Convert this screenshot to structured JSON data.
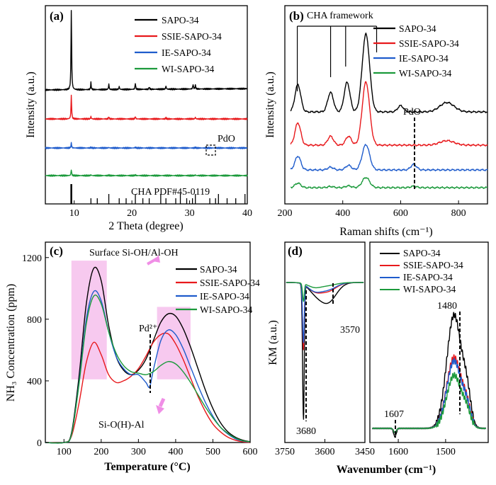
{
  "colors": {
    "SAPO-34": "#000000",
    "SSIE-SAPO-34": "#e8191c",
    "IE-SAPO-34": "#1f5ccc",
    "WI-SAPO-34": "#1c9a3c",
    "highlight": "#f7c9ef",
    "arrow": "#f08ee6"
  },
  "legend": [
    "SAPO-34",
    "SSIE-SAPO-34",
    "IE-SAPO-34",
    "WI-SAPO-34"
  ],
  "chart_data": [
    {
      "panel": "(a)",
      "type": "line",
      "xlabel": "2 Theta (degree)",
      "ylabel": "Intensity (a.u.)",
      "xlim": [
        5,
        40
      ],
      "xticks": [
        10,
        20,
        30,
        40
      ],
      "annotations": [
        "PdO",
        "CHA PDF#45-0119"
      ],
      "reference_peaks": [
        9.5,
        12.9,
        14.0,
        16.0,
        17.8,
        19.0,
        20.6,
        21.9,
        23.0,
        25.0,
        25.9,
        27.6,
        28.4,
        29.5,
        30.5,
        31.0,
        33.5,
        34.5,
        35.0,
        36.5,
        38.0,
        39.6
      ],
      "series": [
        {
          "name": "SAPO-34",
          "peaks": [
            [
              9.5,
              1.0
            ],
            [
              12.9,
              0.09
            ],
            [
              16.0,
              0.07
            ],
            [
              17.8,
              0.04
            ],
            [
              20.6,
              0.08
            ],
            [
              23.0,
              0.03
            ],
            [
              25.9,
              0.04
            ],
            [
              30.6,
              0.06
            ],
            [
              31.0,
              0.05
            ]
          ]
        },
        {
          "name": "SSIE-SAPO-34",
          "peaks": [
            [
              9.5,
              0.55
            ],
            [
              12.9,
              0.06
            ],
            [
              16.0,
              0.05
            ],
            [
              20.6,
              0.06
            ],
            [
              25.9,
              0.03
            ],
            [
              31.0,
              0.04
            ]
          ]
        },
        {
          "name": "IE-SAPO-34",
          "peaks": [
            [
              9.5,
              0.25
            ],
            [
              12.9,
              0.04
            ],
            [
              16.0,
              0.03
            ],
            [
              20.6,
              0.04
            ],
            [
              31.0,
              0.03
            ]
          ]
        },
        {
          "name": "WI-SAPO-34",
          "peaks": [
            [
              9.5,
              0.28
            ],
            [
              12.9,
              0.04
            ],
            [
              16.0,
              0.03
            ],
            [
              20.6,
              0.04
            ],
            [
              31.0,
              0.03
            ]
          ]
        }
      ]
    },
    {
      "panel": "(b)",
      "type": "line",
      "xlabel": "Raman shifts (cm⁻¹)",
      "ylabel": "Intensity (a.u.)",
      "xlim": [
        200,
        900
      ],
      "xticks": [
        200,
        400,
        600,
        800
      ],
      "annotations": [
        "CHA framework",
        "PdO"
      ],
      "framework_bands": [
        243,
        358,
        410,
        480
      ],
      "pdo_band": 645,
      "series": [
        {
          "name": "SAPO-34",
          "peaks": [
            [
              245,
              0.35
            ],
            [
              358,
              0.25
            ],
            [
              415,
              0.38
            ],
            [
              480,
              1.0
            ],
            [
              600,
              0.08
            ],
            [
              760,
              0.12
            ]
          ]
        },
        {
          "name": "SSIE-SAPO-34",
          "peaks": [
            [
              245,
              0.3
            ],
            [
              358,
              0.12
            ],
            [
              420,
              0.12
            ],
            [
              480,
              0.85
            ],
            [
              760,
              0.06
            ]
          ]
        },
        {
          "name": "IE-SAPO-34",
          "peaks": [
            [
              245,
              0.3
            ],
            [
              358,
              0.06
            ],
            [
              420,
              0.1
            ],
            [
              480,
              0.55
            ],
            [
              645,
              0.12
            ]
          ]
        },
        {
          "name": "WI-SAPO-34",
          "peaks": [
            [
              245,
              0.2
            ],
            [
              358,
              0.05
            ],
            [
              420,
              0.08
            ],
            [
              480,
              0.45
            ],
            [
              645,
              0.06
            ]
          ]
        }
      ]
    },
    {
      "panel": "(c)",
      "type": "line",
      "xlabel": "Temperature (°C)",
      "ylabel": "NH₃ Concentration (ppm)",
      "xlim": [
        50,
        600
      ],
      "ylim": [
        0,
        1300
      ],
      "xticks": [
        100,
        200,
        300,
        400,
        500,
        600
      ],
      "yticks": [
        0,
        400,
        800,
        1200
      ],
      "annotations": [
        "Surface Si-OH/Al-OH",
        "Pd²⁺",
        "Si-O(H)-Al"
      ],
      "series": [
        {
          "name": "SAPO-34",
          "x": [
            50,
            100,
            120,
            140,
            160,
            180,
            200,
            220,
            240,
            260,
            280,
            300,
            320,
            340,
            360,
            380,
            400,
            420,
            440,
            460,
            480,
            500,
            520,
            540,
            560,
            580,
            600
          ],
          "y": [
            0,
            0,
            60,
            420,
            900,
            1130,
            1050,
            760,
            560,
            470,
            440,
            470,
            540,
            660,
            780,
            835,
            820,
            740,
            620,
            480,
            340,
            220,
            130,
            70,
            35,
            15,
            5
          ]
        },
        {
          "name": "SSIE-SAPO-34",
          "x": [
            50,
            100,
            120,
            140,
            160,
            180,
            200,
            220,
            240,
            260,
            280,
            300,
            320,
            340,
            360,
            380,
            400,
            420,
            440,
            460,
            480,
            500,
            520,
            540,
            560,
            580,
            600
          ],
          "y": [
            0,
            0,
            40,
            250,
            520,
            650,
            570,
            440,
            390,
            400,
            430,
            480,
            560,
            650,
            700,
            705,
            640,
            540,
            420,
            300,
            200,
            120,
            70,
            35,
            15,
            5,
            0
          ]
        },
        {
          "name": "IE-SAPO-34",
          "x": [
            50,
            100,
            120,
            140,
            160,
            180,
            200,
            220,
            240,
            260,
            280,
            300,
            320,
            330,
            340,
            360,
            380,
            400,
            420,
            440,
            460,
            480,
            500,
            520,
            540,
            560,
            580,
            600
          ],
          "y": [
            0,
            0,
            50,
            380,
            800,
            980,
            920,
            720,
            560,
            480,
            440,
            440,
            390,
            360,
            470,
            660,
            730,
            700,
            610,
            490,
            370,
            260,
            170,
            100,
            55,
            25,
            10,
            3
          ]
        },
        {
          "name": "WI-SAPO-34",
          "x": [
            50,
            100,
            120,
            140,
            160,
            180,
            200,
            220,
            240,
            260,
            280,
            300,
            320,
            340,
            360,
            380,
            400,
            420,
            440,
            460,
            480,
            500,
            520,
            540,
            560,
            580,
            600
          ],
          "y": [
            0,
            0,
            50,
            370,
            770,
            950,
            900,
            720,
            580,
            500,
            460,
            450,
            440,
            460,
            500,
            525,
            510,
            460,
            390,
            310,
            230,
            160,
            100,
            60,
            30,
            12,
            4
          ]
        }
      ]
    },
    {
      "panel": "(d)",
      "type": "line",
      "xlabel": "Wavenumber (cm⁻¹)",
      "ylabel": "KM (a.u.)",
      "xlim_left": [
        3750,
        3450
      ],
      "xticks_left": [
        3750,
        3600,
        3450
      ],
      "xticks_right": [
        1600,
        1500
      ],
      "annotations": [
        "3570",
        "3680",
        "1607",
        "1480"
      ],
      "series": [
        {
          "name": "SAPO-34",
          "left_minima": [
            [
              3680,
              -1.0
            ],
            [
              3570,
              -0.28
            ]
          ],
          "right_peaks": [
            [
              1607,
              -0.05
            ],
            [
              1480,
              1.0
            ]
          ]
        },
        {
          "name": "SSIE-SAPO-34",
          "left_minima": [
            [
              3680,
              -0.45
            ],
            [
              3570,
              -0.12
            ]
          ],
          "right_peaks": [
            [
              1607,
              -0.03
            ],
            [
              1480,
              0.6
            ]
          ]
        },
        {
          "name": "IE-SAPO-34",
          "left_minima": [
            [
              3680,
              -0.42
            ],
            [
              3570,
              -0.1
            ]
          ],
          "right_peaks": [
            [
              1607,
              -0.03
            ],
            [
              1480,
              0.55
            ]
          ]
        },
        {
          "name": "WI-SAPO-34",
          "left_minima": [
            [
              3680,
              -0.12
            ],
            [
              3570,
              -0.03
            ]
          ],
          "right_peaks": [
            [
              1607,
              -0.02
            ],
            [
              1480,
              0.45
            ]
          ]
        }
      ]
    }
  ]
}
